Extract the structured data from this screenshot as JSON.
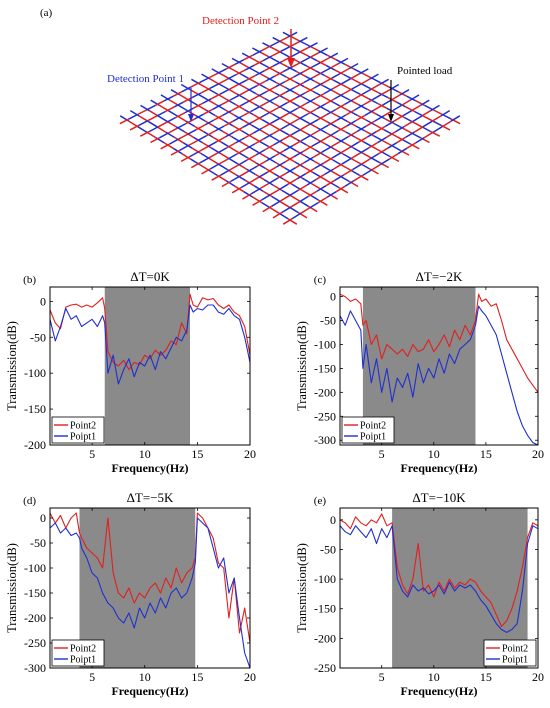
{
  "panel_a": {
    "label": "(a)",
    "annotations": {
      "dp2": "Detection Point 2",
      "dp1": "Detection Point 1",
      "load": "Pointed load"
    },
    "colors": {
      "red": "#e0201e",
      "blue": "#1f2fd0",
      "arrow": "#000000"
    }
  },
  "chart_data": [
    {
      "type": "line",
      "panel": "(b)",
      "title": "ΔT=0K",
      "xlabel": "Frequency(Hz)",
      "ylabel": "Transmission(dB)",
      "xlim": [
        1,
        20
      ],
      "ylim": [
        -200,
        20
      ],
      "xticks": [
        5,
        10,
        15,
        20
      ],
      "yticks": [
        0,
        -50,
        -100,
        -150,
        -200
      ],
      "band": [
        6.2,
        14.3
      ],
      "legend": "bottom-left",
      "series": [
        {
          "name": "Point2",
          "color": "#e0201e",
          "x": [
            1,
            1.5,
            2,
            2.5,
            3,
            3.5,
            4,
            4.5,
            5,
            5.5,
            6,
            6.2,
            6.5,
            7,
            7.5,
            8,
            8.5,
            9,
            9.5,
            10,
            10.5,
            11,
            11.5,
            12,
            12.5,
            13,
            13.5,
            14,
            14.3,
            14.6,
            15,
            15.5,
            16,
            16.5,
            17,
            17.5,
            18,
            18.5,
            19,
            19.5,
            20
          ],
          "y": [
            -12,
            -30,
            -38,
            -8,
            -5,
            -4,
            -8,
            -5,
            -8,
            -2,
            5,
            -10,
            -70,
            -85,
            -90,
            -82,
            -95,
            -85,
            -88,
            -75,
            -80,
            -68,
            -75,
            -68,
            -55,
            -60,
            -30,
            -45,
            10,
            -5,
            -8,
            5,
            2,
            4,
            -5,
            -10,
            -5,
            -15,
            -20,
            -35,
            -75
          ]
        },
        {
          "name": "Poipt1",
          "color": "#1f2fd0",
          "x": [
            1,
            1.5,
            2,
            2.5,
            3,
            3.5,
            4,
            4.5,
            5,
            5.5,
            6,
            6.2,
            6.5,
            7,
            7.5,
            8,
            8.5,
            9,
            9.5,
            10,
            10.5,
            11,
            11.5,
            12,
            12.5,
            13,
            13.5,
            14,
            14.3,
            14.6,
            15,
            15.5,
            16,
            16.5,
            17,
            17.5,
            18,
            18.5,
            19,
            19.5,
            20
          ],
          "y": [
            -25,
            -55,
            -35,
            -10,
            -25,
            -20,
            -35,
            -30,
            -25,
            -35,
            -20,
            -30,
            -100,
            -75,
            -115,
            -95,
            -80,
            -105,
            -85,
            -90,
            -75,
            -95,
            -70,
            -80,
            -65,
            -50,
            -55,
            -40,
            -5,
            -15,
            -10,
            -12,
            -5,
            -5,
            -15,
            -18,
            -10,
            -20,
            -25,
            -50,
            -85
          ]
        }
      ]
    },
    {
      "type": "line",
      "panel": "(c)",
      "title": "ΔT=−2K",
      "xlabel": "Frequency(Hz)",
      "ylabel": "Transmission(dB)",
      "xlim": [
        1,
        20
      ],
      "ylim": [
        -310,
        20
      ],
      "xticks": [
        5,
        10,
        15,
        20
      ],
      "yticks": [
        0,
        -50,
        -100,
        -150,
        -200,
        -250,
        -300
      ],
      "band": [
        3.2,
        14.0
      ],
      "legend": "bottom-left",
      "series": [
        {
          "name": "Point2",
          "color": "#e0201e",
          "x": [
            1,
            1.5,
            2,
            2.5,
            3,
            3.2,
            3.5,
            4,
            4.5,
            5,
            5.5,
            6,
            6.5,
            7,
            7.5,
            8,
            8.5,
            9,
            9.5,
            10,
            10.5,
            11,
            11.5,
            12,
            12.5,
            13,
            13.5,
            14,
            14.3,
            14.6,
            15,
            15.5,
            16,
            16.5,
            17,
            17.5,
            18,
            18.5,
            19,
            19.5,
            20
          ],
          "y": [
            5,
            0,
            -10,
            -5,
            -15,
            -60,
            -50,
            -100,
            -80,
            -130,
            -100,
            -110,
            -120,
            -110,
            -125,
            -100,
            -115,
            -110,
            -90,
            -115,
            -100,
            -80,
            -105,
            -70,
            -90,
            -60,
            -80,
            -50,
            5,
            -10,
            -5,
            -20,
            -15,
            -50,
            -90,
            -110,
            -130,
            -150,
            -170,
            -185,
            -200
          ]
        },
        {
          "name": "Poipt1",
          "color": "#1f2fd0",
          "x": [
            1,
            1.5,
            2,
            2.5,
            3,
            3.2,
            3.5,
            4,
            4.5,
            5,
            5.5,
            6,
            6.5,
            7,
            7.5,
            8,
            8.5,
            9,
            9.5,
            10,
            10.5,
            11,
            11.5,
            12,
            12.5,
            13,
            13.5,
            14,
            14.3,
            14.6,
            15,
            15.5,
            16,
            16.5,
            17,
            17.5,
            18,
            18.5,
            19,
            19.5,
            20
          ],
          "y": [
            -40,
            -60,
            -30,
            -50,
            -70,
            -150,
            -100,
            -180,
            -130,
            -200,
            -150,
            -220,
            -170,
            -190,
            -160,
            -210,
            -140,
            -180,
            -150,
            -170,
            -130,
            -160,
            -120,
            -140,
            -110,
            -100,
            -90,
            -60,
            -20,
            -30,
            -40,
            -60,
            -80,
            -120,
            -160,
            -200,
            -240,
            -270,
            -290,
            -305,
            -310
          ]
        }
      ]
    },
    {
      "type": "line",
      "panel": "(d)",
      "title": "ΔT=−5K",
      "xlabel": "Frequency(Hz)",
      "ylabel": "Transmission(dB)",
      "xlim": [
        1,
        20
      ],
      "ylim": [
        -300,
        20
      ],
      "xticks": [
        5,
        10,
        15,
        20
      ],
      "yticks": [
        0,
        -50,
        -100,
        -150,
        -200,
        -250,
        -300
      ],
      "band": [
        3.8,
        14.8
      ],
      "legend": "bottom-left",
      "series": [
        {
          "name": "Point2",
          "color": "#e0201e",
          "x": [
            1,
            1.5,
            2,
            2.5,
            3,
            3.5,
            3.8,
            4,
            4.5,
            5,
            5.5,
            6,
            6.5,
            7,
            7.5,
            8,
            8.5,
            9,
            9.5,
            10,
            10.5,
            11,
            11.5,
            12,
            12.5,
            13,
            13.5,
            14,
            14.5,
            14.8,
            15,
            15.5,
            16,
            16.5,
            17,
            17.5,
            18,
            18.5,
            19,
            19.5,
            20
          ],
          "y": [
            10,
            -10,
            5,
            -20,
            0,
            10,
            -30,
            -40,
            -60,
            -70,
            -80,
            -100,
            0,
            -110,
            -150,
            -160,
            -140,
            -170,
            -150,
            -160,
            -140,
            -130,
            -150,
            -120,
            -140,
            -100,
            -130,
            -110,
            -100,
            -80,
            10,
            0,
            -20,
            -40,
            -90,
            -100,
            -200,
            -120,
            -230,
            -180,
            -250
          ]
        },
        {
          "name": "Poipt1",
          "color": "#1f2fd0",
          "x": [
            1,
            1.5,
            2,
            2.5,
            3,
            3.5,
            3.8,
            4,
            4.5,
            5,
            5.5,
            6,
            6.5,
            7,
            7.5,
            8,
            8.5,
            9,
            9.5,
            10,
            10.5,
            11,
            11.5,
            12,
            12.5,
            13,
            13.5,
            14,
            14.5,
            14.8,
            15,
            15.5,
            16,
            16.5,
            17,
            17.5,
            18,
            18.5,
            19,
            19.5,
            20
          ],
          "y": [
            -20,
            -10,
            -30,
            -20,
            -35,
            -30,
            -40,
            -60,
            -80,
            -110,
            -120,
            -150,
            -170,
            -180,
            -200,
            -210,
            -190,
            -220,
            -180,
            -200,
            -170,
            -190,
            -160,
            -180,
            -150,
            -140,
            -160,
            -150,
            -120,
            -90,
            0,
            -10,
            -20,
            -60,
            -100,
            -80,
            -150,
            -120,
            -200,
            -270,
            -300
          ]
        }
      ]
    },
    {
      "type": "line",
      "panel": "(e)",
      "title": "ΔT=−10K",
      "xlabel": "Frequency(Hz)",
      "ylabel": "Transmission(dB)",
      "xlim": [
        1,
        20
      ],
      "ylim": [
        -250,
        20
      ],
      "xticks": [
        5,
        10,
        15,
        20
      ],
      "yticks": [
        0,
        -50,
        -100,
        -150,
        -200,
        -250
      ],
      "band": [
        6.0,
        19.0
      ],
      "legend": "bottom-right",
      "series": [
        {
          "name": "Point2",
          "color": "#e0201e",
          "x": [
            1,
            1.5,
            2,
            2.5,
            3,
            3.5,
            4,
            4.5,
            5,
            5.5,
            6,
            6.5,
            7,
            7.5,
            8,
            8.5,
            9,
            9.5,
            10,
            10.5,
            11,
            11.5,
            12,
            12.5,
            13,
            13.5,
            14,
            14.5,
            15,
            15.5,
            16,
            16.5,
            17,
            17.5,
            18,
            18.5,
            19,
            19.5,
            20
          ],
          "y": [
            0,
            -5,
            -15,
            5,
            -5,
            -10,
            0,
            -5,
            10,
            -10,
            -5,
            -80,
            -110,
            -125,
            -100,
            -40,
            -120,
            -110,
            -130,
            -105,
            -120,
            -100,
            -115,
            -105,
            -110,
            -100,
            -105,
            -120,
            -130,
            -140,
            -160,
            -180,
            -170,
            -150,
            -120,
            -80,
            -30,
            -5,
            -10
          ]
        },
        {
          "name": "Poipt1",
          "color": "#1f2fd0",
          "x": [
            1,
            1.5,
            2,
            2.5,
            3,
            3.5,
            4,
            4.5,
            5,
            5.5,
            6,
            6.5,
            7,
            7.5,
            8,
            8.5,
            9,
            9.5,
            10,
            10.5,
            11,
            11.5,
            12,
            12.5,
            13,
            13.5,
            14,
            14.5,
            15,
            15.5,
            16,
            16.5,
            17,
            17.5,
            18,
            18.5,
            19,
            19.5,
            20
          ],
          "y": [
            -10,
            -20,
            -25,
            -10,
            -20,
            -30,
            -15,
            -40,
            -15,
            -30,
            -10,
            -100,
            -120,
            -130,
            -110,
            -120,
            -115,
            -125,
            -120,
            -110,
            -125,
            -105,
            -120,
            -110,
            -115,
            -110,
            -120,
            -135,
            -145,
            -160,
            -175,
            -185,
            -190,
            -185,
            -175,
            -120,
            -40,
            -10,
            -15
          ]
        }
      ]
    }
  ]
}
